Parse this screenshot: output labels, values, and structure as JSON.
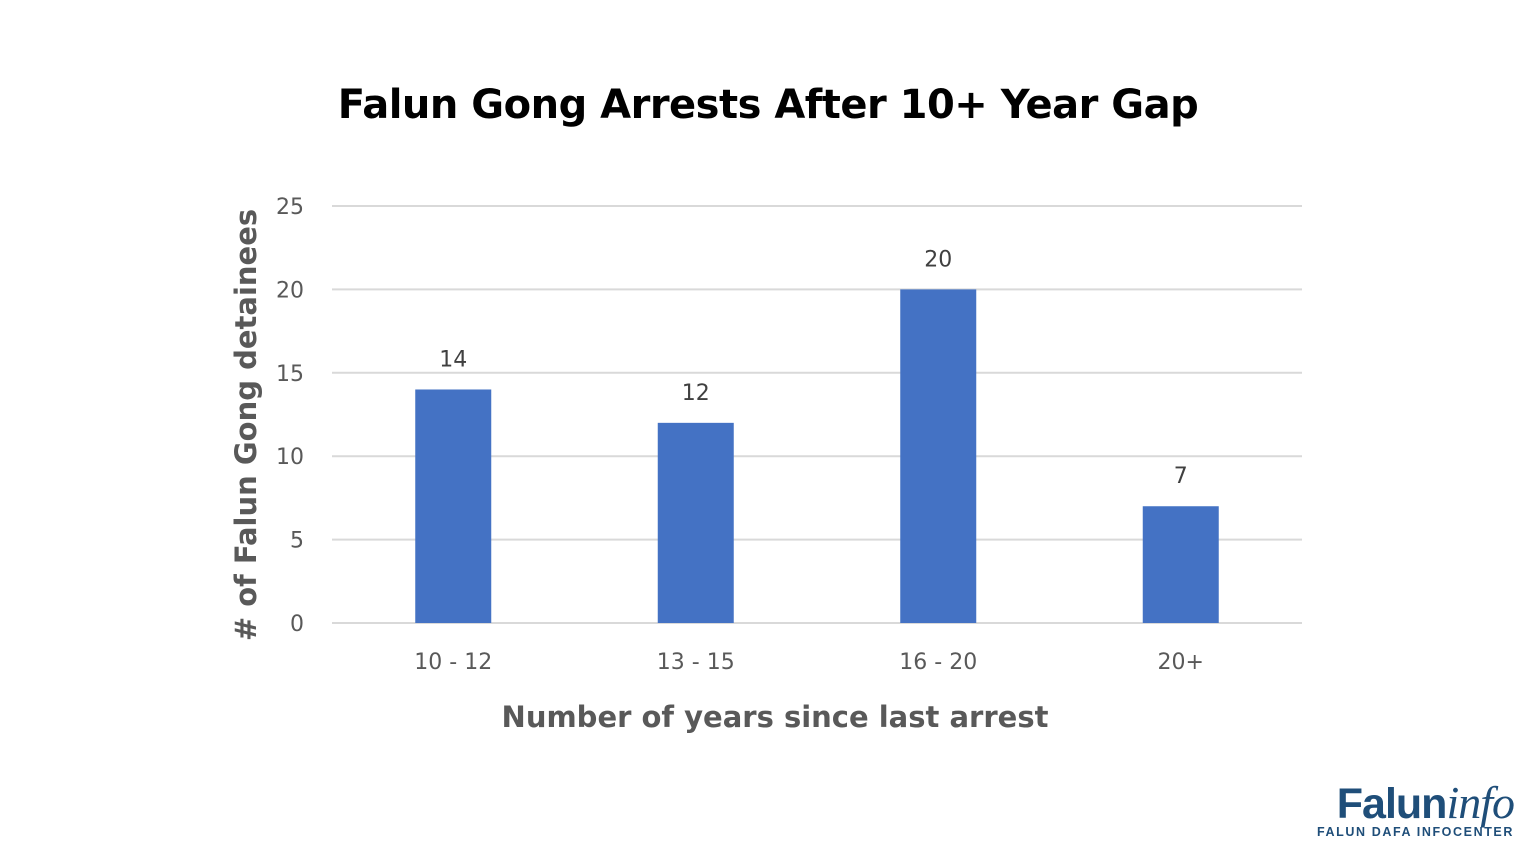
{
  "chart_data": {
    "type": "bar",
    "title": "Falun Gong Arrests After 10+ Year Gap",
    "xlabel": "Number of years since last arrest",
    "ylabel": "# of Falun Gong detainees",
    "categories": [
      "10 - 12",
      "13 - 15",
      "16 - 20",
      "20+"
    ],
    "values": [
      14,
      12,
      20,
      7
    ],
    "data_labels": [
      "14",
      "12",
      "20",
      "7"
    ],
    "ylim": [
      0,
      25
    ],
    "yticks": [
      "0",
      "5",
      "10",
      "15",
      "20",
      "25"
    ],
    "grid": true,
    "legend": "none",
    "bar_color": "#4472c4",
    "grid_color": "#d9d9d9"
  },
  "logo": {
    "bold_text": "Falun",
    "italic_text": "info",
    "subtitle": "FALUN DAFA INFOCENTER",
    "color": "#1f4e79"
  }
}
